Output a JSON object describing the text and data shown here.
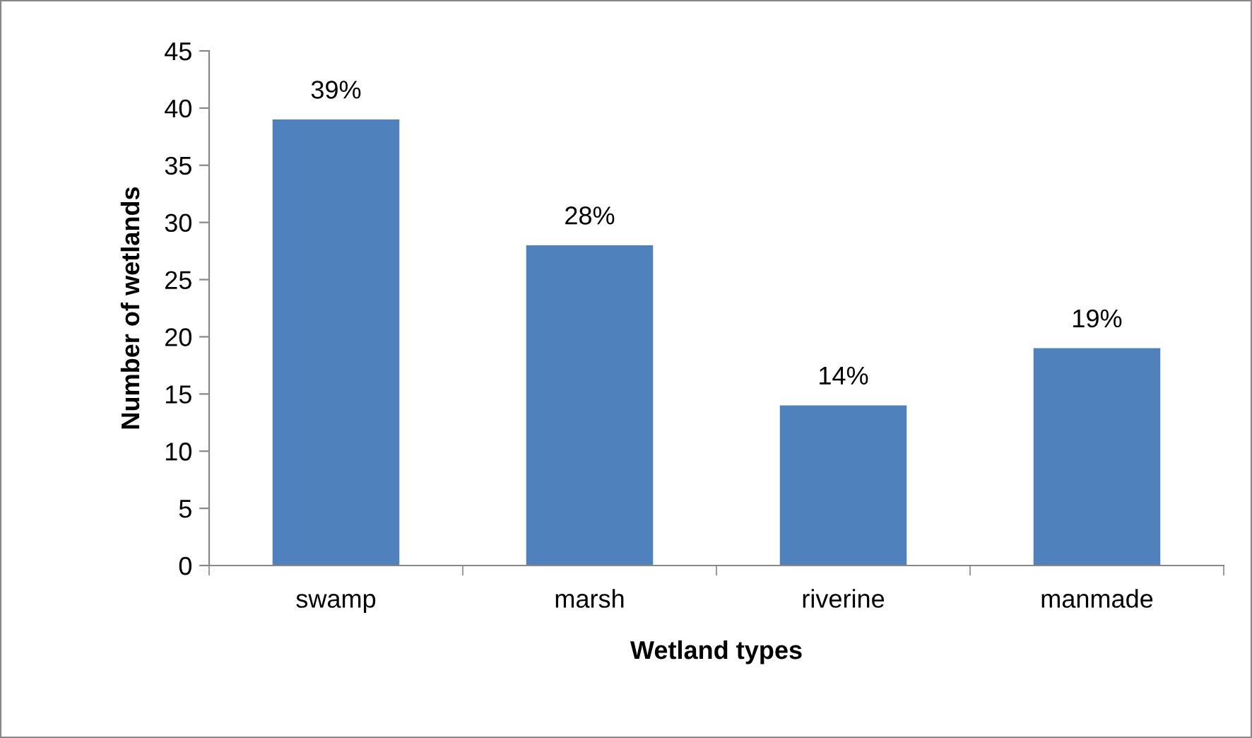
{
  "chart_data": {
    "type": "bar",
    "xlabel": "Wetland types",
    "ylabel": "Number of wetlands",
    "categories": [
      "swamp",
      "marsh",
      "riverine",
      "manmade"
    ],
    "values": [
      39,
      28,
      14,
      19
    ],
    "value_labels": [
      "39%",
      "28%",
      "14%",
      "19%"
    ],
    "color": "#4f81bd",
    "ylim": [
      0,
      45
    ],
    "yticks": [
      0,
      5,
      10,
      15,
      20,
      25,
      30,
      35,
      40,
      45
    ],
    "grid": false,
    "legend": false
  }
}
